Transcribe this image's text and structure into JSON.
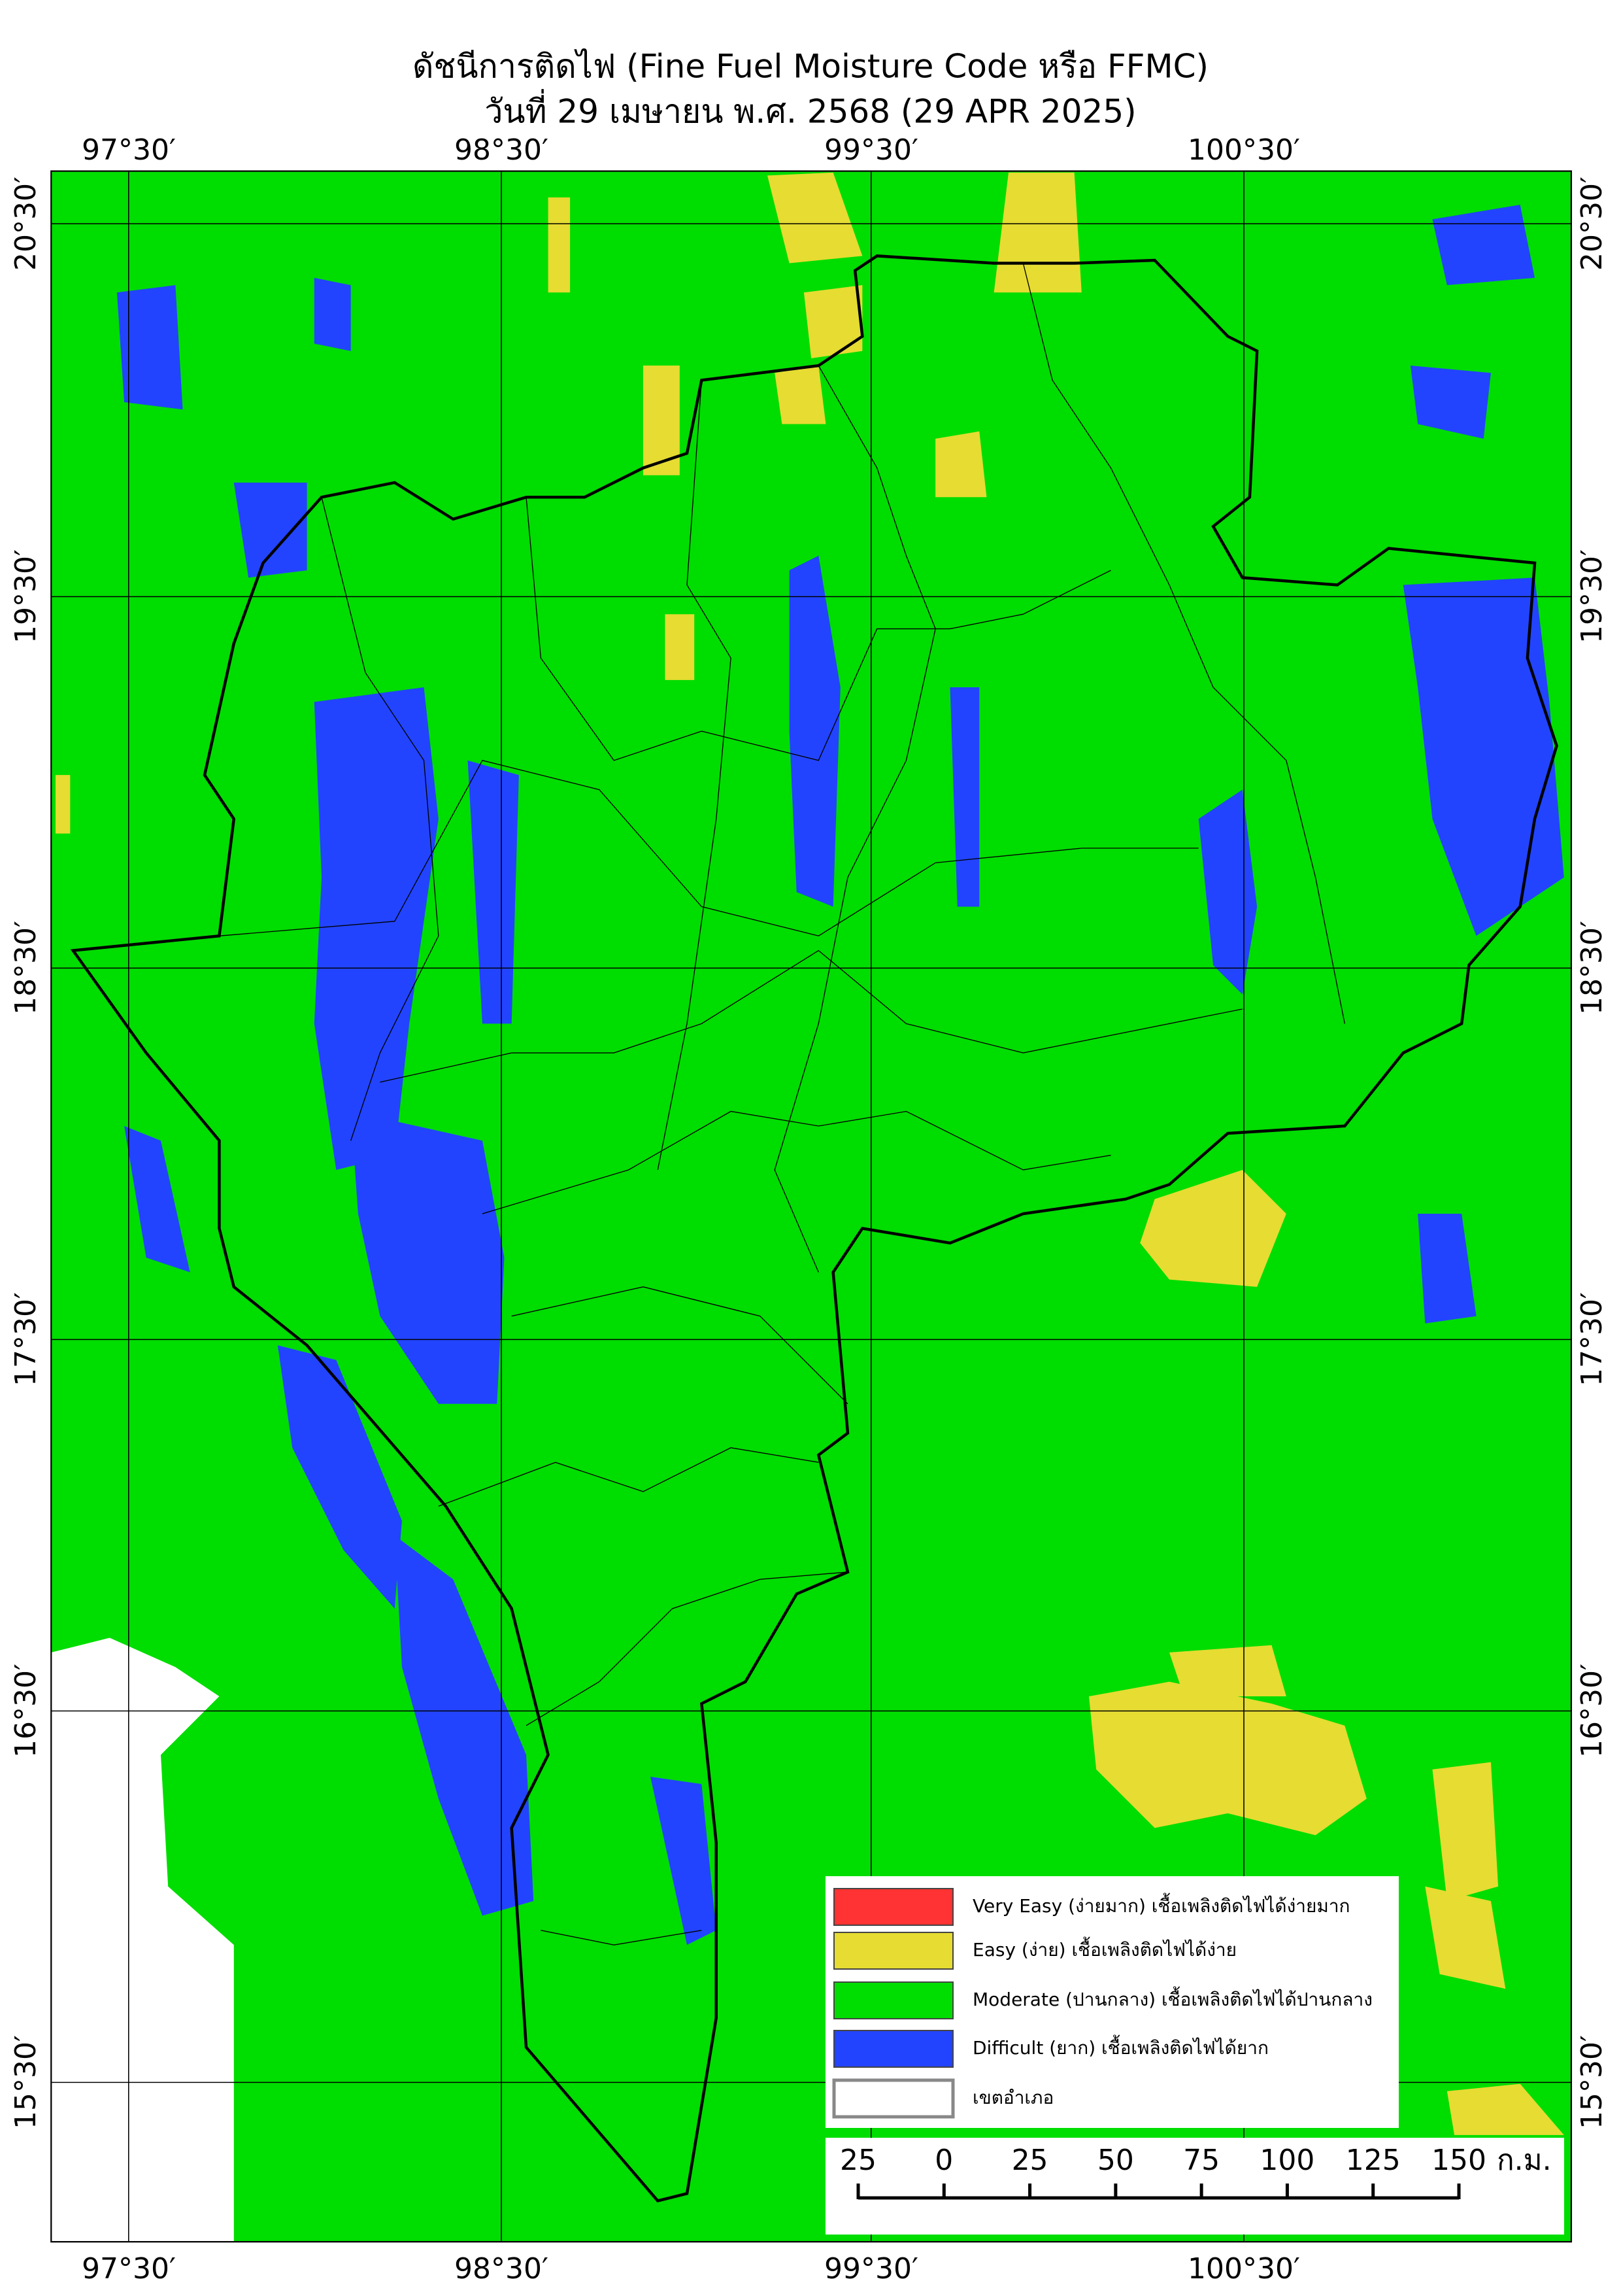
{
  "title": "ดัชนีการติดไฟ (Fine Fuel Moisture Code หรือ FFMC)",
  "subtitle": "วันที่ 29 เมษายน พ.ศ. 2568 (29 APR 2025)",
  "longitude_labels": [
    "97°30′",
    "98°30′",
    "99°30′",
    "100°30′"
  ],
  "latitude_labels": [
    "20°30′",
    "19°30′",
    "18°30′",
    "17°30′",
    "16°30′",
    "15°30′"
  ],
  "legend": [
    {
      "label": "Very Easy (ง่ายมาก) เชื้อเพลิงติดไฟได้ง่ายมาก",
      "color": "#ff3333"
    },
    {
      "label": "Easy (ง่าย) เชื้อเพลิงติดไฟได้ง่าย",
      "color": "#e6dc32"
    },
    {
      "label": "Moderate (ปานกลาง) เชื้อเพลิงติดไฟได้ปานกลาง",
      "color": "#00dd00"
    },
    {
      "label": "Difficult (ยาก) เชื้อเพลิงติดไฟได้ยาก",
      "color": "#2244ff"
    },
    {
      "label": "เขตอำเภอ",
      "color": "#ffffff"
    }
  ],
  "scale_bar": {
    "labels": [
      "25",
      "0",
      "25",
      "50",
      "75",
      "100",
      "125",
      "150"
    ],
    "unit": "ก.ม."
  }
}
